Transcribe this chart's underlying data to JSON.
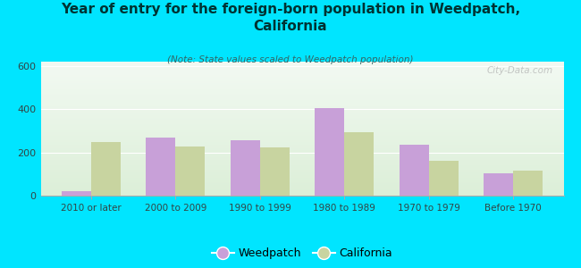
{
  "title": "Year of entry for the foreign-born population in Weedpatch,\nCalifornia",
  "subtitle": "(Note: State values scaled to Weedpatch population)",
  "categories": [
    "2010 or later",
    "2000 to 2009",
    "1990 to 1999",
    "1980 to 1989",
    "1970 to 1979",
    "Before 1970"
  ],
  "weedpatch": [
    20,
    270,
    255,
    405,
    235,
    105
  ],
  "california": [
    248,
    228,
    222,
    295,
    163,
    115
  ],
  "weedpatch_color": "#c8a0d8",
  "california_color": "#c8d4a0",
  "background_outer": "#00e5ff",
  "ylim": [
    0,
    620
  ],
  "yticks": [
    0,
    200,
    400,
    600
  ],
  "watermark": "City-Data.com",
  "bar_width": 0.35,
  "title_color": "#003333",
  "subtitle_color": "#336666",
  "tick_color": "#334444",
  "legend_marker": "circle"
}
